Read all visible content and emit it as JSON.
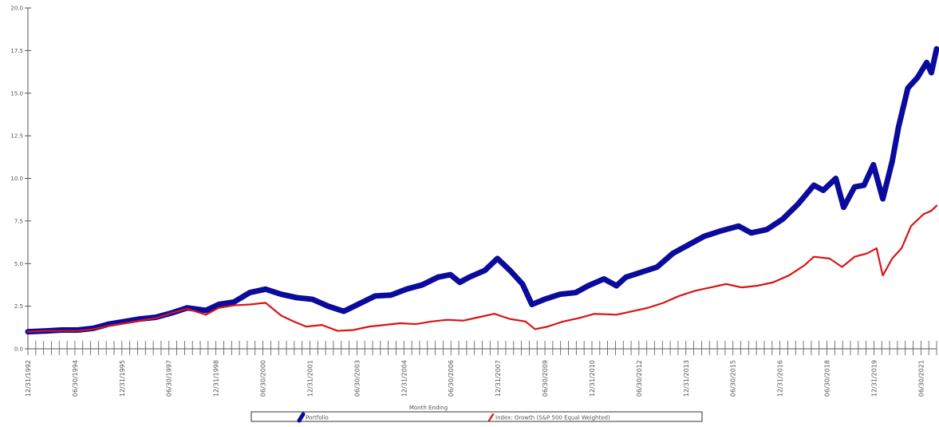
{
  "chart_data": {
    "type": "line",
    "xlabel": "Month Ending",
    "ylim": [
      0,
      20
    ],
    "yticks": [
      "0.0",
      "2.5",
      "5.0",
      "7.5",
      "10.0",
      "12.5",
      "15.0",
      "17.5",
      "20.0"
    ],
    "xtick_labels": [
      {
        "label": "12/31/1992",
        "x": 1992.917
      },
      {
        "label": "06/30/1994",
        "x": 1994.417
      },
      {
        "label": "12/31/1995",
        "x": 1995.917
      },
      {
        "label": "06/30/1997",
        "x": 1997.417
      },
      {
        "label": "12/31/1998",
        "x": 1998.917
      },
      {
        "label": "06/30/2000",
        "x": 2000.417
      },
      {
        "label": "12/31/2001",
        "x": 2001.917
      },
      {
        "label": "06/30/2003",
        "x": 2003.417
      },
      {
        "label": "12/31/2004",
        "x": 2004.917
      },
      {
        "label": "06/30/2006",
        "x": 2006.417
      },
      {
        "label": "12/31/2007",
        "x": 2007.917
      },
      {
        "label": "06/30/2009",
        "x": 2009.417
      },
      {
        "label": "12/31/2010",
        "x": 2010.917
      },
      {
        "label": "06/30/2012",
        "x": 2012.417
      },
      {
        "label": "12/31/2013",
        "x": 2013.917
      },
      {
        "label": "06/30/2015",
        "x": 2015.417
      },
      {
        "label": "12/31/2016",
        "x": 2016.917
      },
      {
        "label": "06/30/2018",
        "x": 2018.417
      },
      {
        "label": "12/31/2019",
        "x": 2019.917
      },
      {
        "label": "06/30/2021",
        "x": 2021.417
      }
    ],
    "xlim": [
      1992.917,
      2021.917
    ],
    "grid": false,
    "legend_position": "bottom",
    "series": [
      {
        "name": "Portfolio",
        "color": "#0a0a9c",
        "points": [
          [
            1992.917,
            1.0
          ],
          [
            1993.5,
            1.05
          ],
          [
            1994.0,
            1.1
          ],
          [
            1994.5,
            1.1
          ],
          [
            1995.0,
            1.2
          ],
          [
            1995.5,
            1.45
          ],
          [
            1996.0,
            1.6
          ],
          [
            1996.5,
            1.75
          ],
          [
            1997.0,
            1.85
          ],
          [
            1997.5,
            2.1
          ],
          [
            1998.0,
            2.4
          ],
          [
            1998.6,
            2.25
          ],
          [
            1999.0,
            2.6
          ],
          [
            1999.5,
            2.75
          ],
          [
            2000.0,
            3.3
          ],
          [
            2000.5,
            3.5
          ],
          [
            2001.0,
            3.2
          ],
          [
            2001.5,
            3.0
          ],
          [
            2002.0,
            2.9
          ],
          [
            2002.5,
            2.5
          ],
          [
            2003.0,
            2.2
          ],
          [
            2003.5,
            2.65
          ],
          [
            2004.0,
            3.1
          ],
          [
            2004.5,
            3.15
          ],
          [
            2005.0,
            3.5
          ],
          [
            2005.5,
            3.75
          ],
          [
            2006.0,
            4.2
          ],
          [
            2006.4,
            4.35
          ],
          [
            2006.7,
            3.9
          ],
          [
            2007.0,
            4.2
          ],
          [
            2007.5,
            4.6
          ],
          [
            2007.9,
            5.3
          ],
          [
            2008.3,
            4.6
          ],
          [
            2008.7,
            3.8
          ],
          [
            2009.0,
            2.6
          ],
          [
            2009.4,
            2.9
          ],
          [
            2009.9,
            3.2
          ],
          [
            2010.4,
            3.3
          ],
          [
            2010.8,
            3.7
          ],
          [
            2011.3,
            4.1
          ],
          [
            2011.7,
            3.7
          ],
          [
            2012.0,
            4.2
          ],
          [
            2012.5,
            4.5
          ],
          [
            2013.0,
            4.8
          ],
          [
            2013.5,
            5.6
          ],
          [
            2014.0,
            6.1
          ],
          [
            2014.5,
            6.6
          ],
          [
            2015.0,
            6.9
          ],
          [
            2015.6,
            7.2
          ],
          [
            2016.0,
            6.8
          ],
          [
            2016.5,
            7.0
          ],
          [
            2017.0,
            7.6
          ],
          [
            2017.5,
            8.5
          ],
          [
            2018.0,
            9.6
          ],
          [
            2018.3,
            9.3
          ],
          [
            2018.7,
            10.0
          ],
          [
            2018.95,
            8.3
          ],
          [
            2019.3,
            9.5
          ],
          [
            2019.6,
            9.6
          ],
          [
            2019.9,
            10.8
          ],
          [
            2020.2,
            8.8
          ],
          [
            2020.5,
            11.0
          ],
          [
            2020.7,
            13.0
          ],
          [
            2021.0,
            15.3
          ],
          [
            2021.3,
            15.9
          ],
          [
            2021.6,
            16.8
          ],
          [
            2021.75,
            16.2
          ],
          [
            2021.917,
            17.6
          ]
        ]
      },
      {
        "name": "Index: Growth (S&P 500 Equal Weighted)",
        "color": "#d91414",
        "points": [
          [
            1992.917,
            1.0
          ],
          [
            1993.5,
            1.05
          ],
          [
            1994.0,
            1.05
          ],
          [
            1994.5,
            1.05
          ],
          [
            1995.0,
            1.15
          ],
          [
            1995.5,
            1.35
          ],
          [
            1996.0,
            1.5
          ],
          [
            1996.5,
            1.65
          ],
          [
            1997.0,
            1.8
          ],
          [
            1997.5,
            2.1
          ],
          [
            1998.0,
            2.35
          ],
          [
            1998.6,
            2.0
          ],
          [
            1999.0,
            2.4
          ],
          [
            1999.5,
            2.55
          ],
          [
            2000.0,
            2.6
          ],
          [
            2000.5,
            2.7
          ],
          [
            2001.0,
            1.95
          ],
          [
            2001.4,
            1.6
          ],
          [
            2001.8,
            1.3
          ],
          [
            2002.3,
            1.4
          ],
          [
            2002.8,
            1.05
          ],
          [
            2003.3,
            1.1
          ],
          [
            2003.8,
            1.3
          ],
          [
            2004.3,
            1.4
          ],
          [
            2004.8,
            1.5
          ],
          [
            2005.3,
            1.45
          ],
          [
            2005.8,
            1.6
          ],
          [
            2006.3,
            1.7
          ],
          [
            2006.8,
            1.65
          ],
          [
            2007.3,
            1.85
          ],
          [
            2007.8,
            2.05
          ],
          [
            2008.3,
            1.75
          ],
          [
            2008.8,
            1.6
          ],
          [
            2009.1,
            1.15
          ],
          [
            2009.5,
            1.3
          ],
          [
            2010.0,
            1.6
          ],
          [
            2010.5,
            1.8
          ],
          [
            2011.0,
            2.05
          ],
          [
            2011.7,
            2.0
          ],
          [
            2012.2,
            2.2
          ],
          [
            2012.7,
            2.4
          ],
          [
            2013.2,
            2.7
          ],
          [
            2013.7,
            3.1
          ],
          [
            2014.2,
            3.4
          ],
          [
            2014.7,
            3.6
          ],
          [
            2015.2,
            3.8
          ],
          [
            2015.7,
            3.6
          ],
          [
            2016.2,
            3.7
          ],
          [
            2016.7,
            3.9
          ],
          [
            2017.2,
            4.3
          ],
          [
            2017.7,
            4.9
          ],
          [
            2018.0,
            5.4
          ],
          [
            2018.5,
            5.3
          ],
          [
            2018.9,
            4.8
          ],
          [
            2019.3,
            5.4
          ],
          [
            2019.7,
            5.6
          ],
          [
            2020.0,
            5.9
          ],
          [
            2020.2,
            4.3
          ],
          [
            2020.5,
            5.3
          ],
          [
            2020.8,
            5.9
          ],
          [
            2021.1,
            7.2
          ],
          [
            2021.5,
            7.9
          ],
          [
            2021.75,
            8.1
          ],
          [
            2021.917,
            8.4
          ]
        ]
      }
    ]
  }
}
